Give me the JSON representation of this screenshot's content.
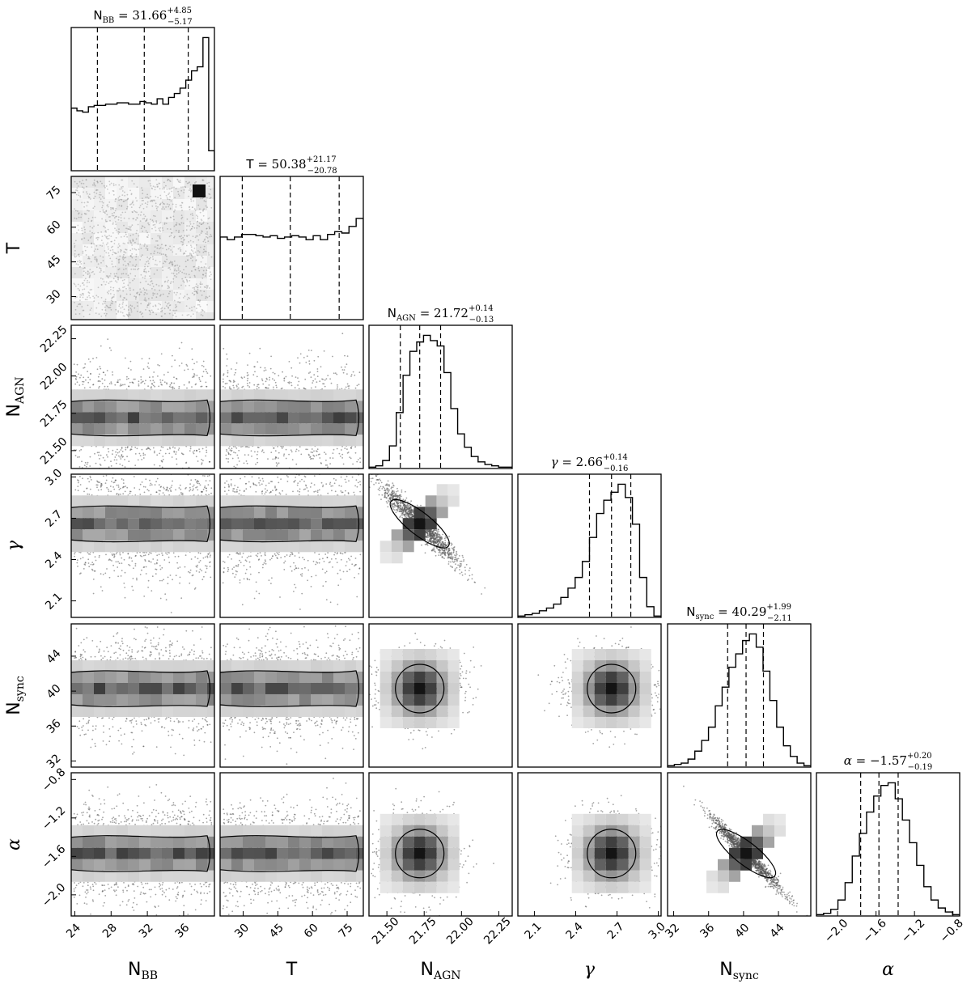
{
  "chart_data": {
    "type": "corner",
    "parameters": [
      {
        "key": "NBB",
        "label_main": "N",
        "label_sub": "BB",
        "italic": false,
        "title_main": "N",
        "title_sub": "BB",
        "title_value": "= 31.66",
        "title_plus": "+4.85",
        "title_minus": "−5.17",
        "range": [
          23.6,
          39.4
        ],
        "ticks": [
          24,
          28,
          32,
          36
        ],
        "tick_labels": [
          "24",
          "28",
          "32",
          "36"
        ],
        "quantiles": [
          26.49,
          31.66,
          36.51
        ],
        "hist": [
          0.47,
          0.45,
          0.44,
          0.48,
          0.49,
          0.49,
          0.5,
          0.5,
          0.51,
          0.51,
          0.5,
          0.5,
          0.52,
          0.51,
          0.5,
          0.54,
          0.5,
          0.55,
          0.58,
          0.62,
          0.68,
          0.75,
          0.78,
          1.0,
          0.15
        ]
      },
      {
        "key": "T",
        "label_main": "T",
        "label_sub": "",
        "italic": false,
        "title_main": "T",
        "title_sub": "",
        "title_value": "= 50.38",
        "title_plus": "+21.17",
        "title_minus": "−20.78",
        "range": [
          20,
          82
        ],
        "ticks": [
          30,
          45,
          60,
          75
        ],
        "tick_labels": [
          "30",
          "45",
          "60",
          "75"
        ],
        "quantiles": [
          29.6,
          50.38,
          71.55
        ],
        "hist": [
          0.62,
          0.6,
          0.62,
          0.64,
          0.64,
          0.63,
          0.62,
          0.63,
          0.61,
          0.62,
          0.63,
          0.62,
          0.6,
          0.63,
          0.6,
          0.64,
          0.66,
          0.65,
          0.7,
          0.76
        ]
      },
      {
        "key": "NAGN",
        "label_main": "N",
        "label_sub": "AGN",
        "italic": false,
        "title_main": "N",
        "title_sub": "AGN",
        "title_value": "= 21.72",
        "title_plus": "+0.14",
        "title_minus": "−0.13",
        "range": [
          21.38,
          22.34
        ],
        "ticks": [
          21.5,
          21.75,
          22.0,
          22.25
        ],
        "tick_labels": [
          "21.50",
          "21.75",
          "22.00",
          "22.25"
        ],
        "quantiles": [
          21.59,
          21.72,
          21.86
        ],
        "hist": [
          0.01,
          0.02,
          0.06,
          0.17,
          0.42,
          0.7,
          0.88,
          0.95,
          1.0,
          0.96,
          0.92,
          0.72,
          0.45,
          0.26,
          0.16,
          0.09,
          0.05,
          0.03,
          0.02,
          0.01,
          0.01
        ]
      },
      {
        "key": "gamma",
        "label_main": "γ",
        "label_sub": "",
        "italic": true,
        "title_main": "γ",
        "title_sub": "",
        "title_value": "= 2.66",
        "title_plus": "+0.14",
        "title_minus": "−0.16",
        "range": [
          1.98,
          3.02
        ],
        "ticks": [
          2.1,
          2.4,
          2.7,
          3.0
        ],
        "tick_labels": [
          "2.1",
          "2.4",
          "2.7",
          "3.0"
        ],
        "quantiles": [
          2.5,
          2.66,
          2.8
        ],
        "hist": [
          0.01,
          0.02,
          0.03,
          0.05,
          0.07,
          0.1,
          0.15,
          0.22,
          0.3,
          0.42,
          0.6,
          0.78,
          0.88,
          0.94,
          1.0,
          0.9,
          0.7,
          0.3,
          0.08,
          0.01
        ]
      },
      {
        "key": "Nsync",
        "label_main": "N",
        "label_sub": "sync",
        "italic": false,
        "title_main": "N",
        "title_sub": "sync",
        "title_value": "= 40.29",
        "title_plus": "+1.99",
        "title_minus": "−2.11",
        "range": [
          31.3,
          47.7
        ],
        "ticks": [
          32,
          36,
          40,
          44
        ],
        "tick_labels": [
          "32",
          "36",
          "40",
          "44"
        ],
        "quantiles": [
          38.18,
          40.29,
          42.28
        ],
        "hist": [
          0.01,
          0.02,
          0.03,
          0.06,
          0.12,
          0.2,
          0.3,
          0.46,
          0.6,
          0.75,
          0.85,
          0.95,
          1.0,
          0.9,
          0.72,
          0.5,
          0.3,
          0.16,
          0.08,
          0.03,
          0.01
        ]
      },
      {
        "key": "alpha",
        "label_main": "α",
        "label_sub": "",
        "italic": true,
        "title_main": "α",
        "title_sub": "",
        "title_value": "= −1.57",
        "title_plus": "+0.20",
        "title_minus": "−0.19",
        "range": [
          -2.22,
          -0.73
        ],
        "ticks": [
          -2.0,
          -1.6,
          -1.2,
          -0.8
        ],
        "tick_labels": [
          "−2.0",
          "−1.6",
          "−1.2",
          "−0.8"
        ],
        "quantiles": [
          -1.76,
          -1.57,
          -1.37
        ],
        "hist": [
          0.01,
          0.02,
          0.05,
          0.12,
          0.25,
          0.45,
          0.62,
          0.78,
          0.9,
          0.98,
          1.0,
          0.88,
          0.72,
          0.55,
          0.38,
          0.22,
          0.12,
          0.06,
          0.03,
          0.01
        ]
      }
    ],
    "correlations": {
      "NAGN-gamma": -0.96,
      "Nsync-alpha": -0.98
    }
  }
}
